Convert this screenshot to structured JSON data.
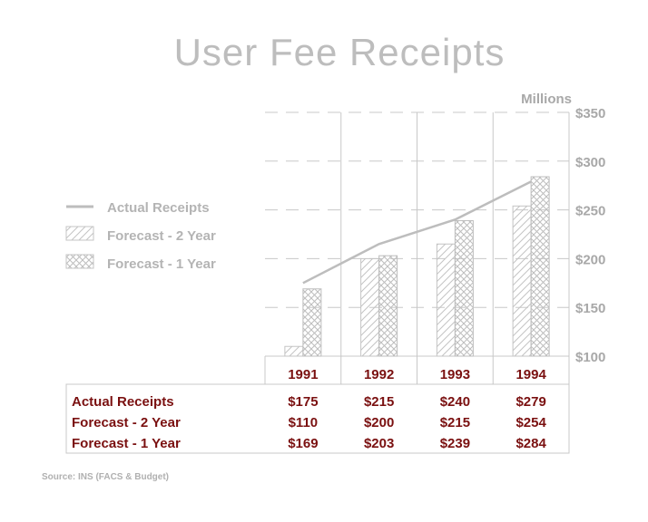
{
  "chart_data": {
    "type": "bar",
    "title": "User Fee Receipts",
    "units": "Millions",
    "categories": [
      "1991",
      "1992",
      "1993",
      "1994"
    ],
    "ylim": [
      100,
      350
    ],
    "yticks": [
      100,
      150,
      200,
      250,
      300,
      350
    ],
    "ytick_labels": [
      "$100",
      "$150",
      "$200",
      "$250",
      "$300",
      "$350"
    ],
    "series": [
      {
        "name": "Actual Receipts",
        "type": "line",
        "values": [
          175,
          215,
          240,
          279
        ],
        "labels": [
          "$175",
          "$215",
          "$240",
          "$279"
        ]
      },
      {
        "name": "Forecast - 2 Year",
        "type": "bar",
        "pattern": "diagonal-hatch",
        "values": [
          110,
          200,
          215,
          254
        ],
        "labels": [
          "$110",
          "$200",
          "$215",
          "$254"
        ]
      },
      {
        "name": "Forecast - 1 Year",
        "type": "bar",
        "pattern": "crosshatch",
        "values": [
          169,
          203,
          239,
          284
        ],
        "labels": [
          "$169",
          "$203",
          "$239",
          "$284"
        ]
      }
    ],
    "legend_position": "left",
    "grid": "dashed horizontal",
    "source": "Source: INS (FACS & Budget)"
  },
  "colors": {
    "gray": "#bdbdbd",
    "dark_red": "#7a1010"
  }
}
